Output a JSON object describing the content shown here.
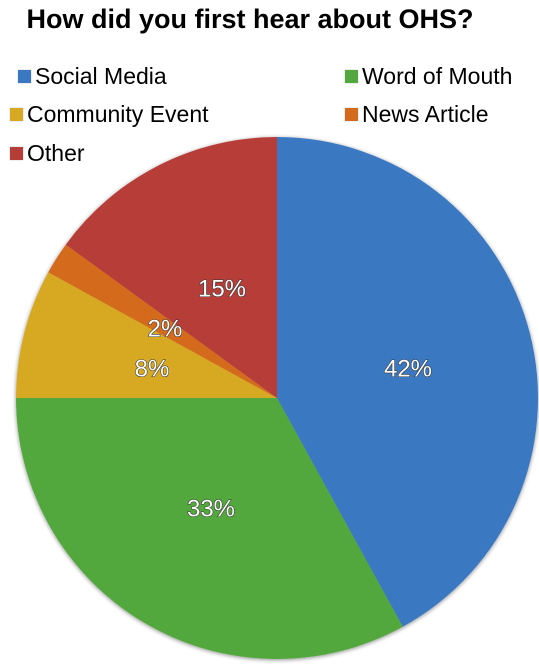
{
  "chart_data": {
    "type": "pie",
    "title": "How did you first hear about OHS?",
    "categories": [
      "Social Media",
      "Word of Mouth",
      "Community Event",
      "News Article",
      "Other"
    ],
    "values": [
      42,
      33,
      8,
      2,
      15
    ],
    "labels": [
      "42%",
      "33%",
      "8%",
      "2%",
      "15%"
    ],
    "colors": [
      "#3a78c2",
      "#52a83c",
      "#d7a821",
      "#d46a1c",
      "#b63c38"
    ],
    "legend_position": "top",
    "start_angle": "12 o'clock",
    "direction": "clockwise"
  }
}
